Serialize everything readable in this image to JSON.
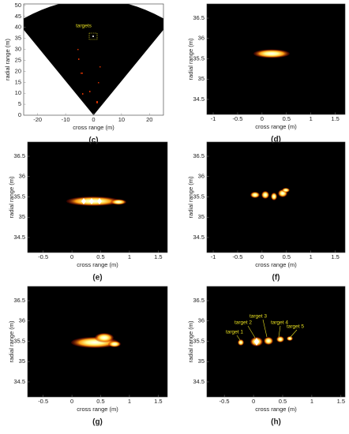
{
  "chart_data": [
    {
      "type": "heatmap",
      "caption": "(c)",
      "xlabel": "cross range (m)",
      "ylabel": "radial range (m)",
      "xlim": [
        -25,
        25
      ],
      "ylim": [
        0,
        50.7
      ],
      "xticks": [
        -20,
        -10,
        0,
        10,
        20
      ],
      "yticks": [
        0,
        5,
        10,
        15,
        20,
        25,
        30,
        35,
        40,
        45,
        50
      ],
      "annotations": [
        "targets"
      ]
    },
    {
      "type": "heatmap",
      "caption": "(d)",
      "xlabel": "cross range (m)",
      "ylabel": "radial range (m)",
      "xlim": [
        -1.13,
        1.7
      ],
      "ylim": [
        34.13,
        36.85
      ],
      "xticks": [
        -1,
        -0.5,
        0,
        0.5,
        1,
        1.5
      ],
      "yticks": [
        34.5,
        35,
        35.5,
        36,
        36.5
      ]
    },
    {
      "type": "heatmap",
      "caption": "(e)",
      "xlabel": "cross range (m)",
      "ylabel": "radial range (m)",
      "xlim": [
        -0.77,
        1.66
      ],
      "ylim": [
        34.13,
        36.85
      ],
      "xticks": [
        -0.5,
        0,
        0.5,
        1,
        1.5
      ],
      "yticks": [
        34.5,
        35,
        35.5,
        36,
        36.5
      ]
    },
    {
      "type": "heatmap",
      "caption": "(f)",
      "xlabel": "cross range (m)",
      "ylabel": "radial range (m)",
      "xlim": [
        -1.13,
        1.7
      ],
      "ylim": [
        34.13,
        36.85
      ],
      "xticks": [
        -1,
        -0.5,
        0,
        0.5,
        1,
        1.5
      ],
      "yticks": [
        34.5,
        35,
        35.5,
        36,
        36.5
      ]
    },
    {
      "type": "heatmap",
      "caption": "(g)",
      "xlabel": "cross range (m)",
      "ylabel": "radial range (m)",
      "xlim": [
        -0.77,
        1.66
      ],
      "ylim": [
        34.13,
        36.85
      ],
      "xticks": [
        -0.5,
        0,
        0.5,
        1,
        1.5
      ],
      "yticks": [
        34.5,
        35,
        35.5,
        36,
        36.5
      ]
    },
    {
      "type": "heatmap",
      "caption": "(h)",
      "xlabel": "cross range (m)",
      "ylabel": "radial range (m)",
      "xlim": [
        -0.8,
        1.57
      ],
      "ylim": [
        34.13,
        36.85
      ],
      "xticks": [
        -0.5,
        0,
        0.5,
        1,
        1.5
      ],
      "yticks": [
        34.5,
        35,
        35.5,
        36,
        36.5
      ],
      "annotations": [
        "target 1",
        "target 2",
        "target 3",
        "target 4",
        "target 5"
      ]
    }
  ]
}
